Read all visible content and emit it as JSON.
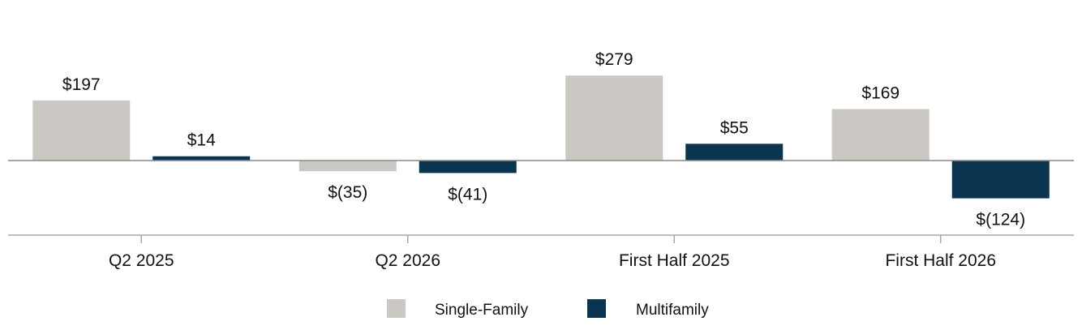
{
  "chart_data": {
    "type": "bar",
    "title": "",
    "xlabel": "",
    "ylabel": "",
    "categories": [
      "Q2 2025",
      "Q2 2026",
      "First Half 2025",
      "First Half 2026"
    ],
    "series": [
      {
        "name": "Single-Family",
        "color": "#cbc8c3",
        "values": [
          197,
          -35,
          279,
          169
        ],
        "labels": [
          "$197",
          "$(35)",
          "$279",
          "$169"
        ]
      },
      {
        "name": "Multifamily",
        "color": "#0a344f",
        "values": [
          14,
          -41,
          55,
          -124
        ],
        "labels": [
          "$14",
          "$(41)",
          "$55",
          "$(124)"
        ]
      }
    ],
    "ylim": [
      -240,
      420
    ],
    "grid": false,
    "legend": "bottom-center",
    "zero_line_color": "#8a8a8a",
    "axis_color": "#a8a8a8"
  }
}
